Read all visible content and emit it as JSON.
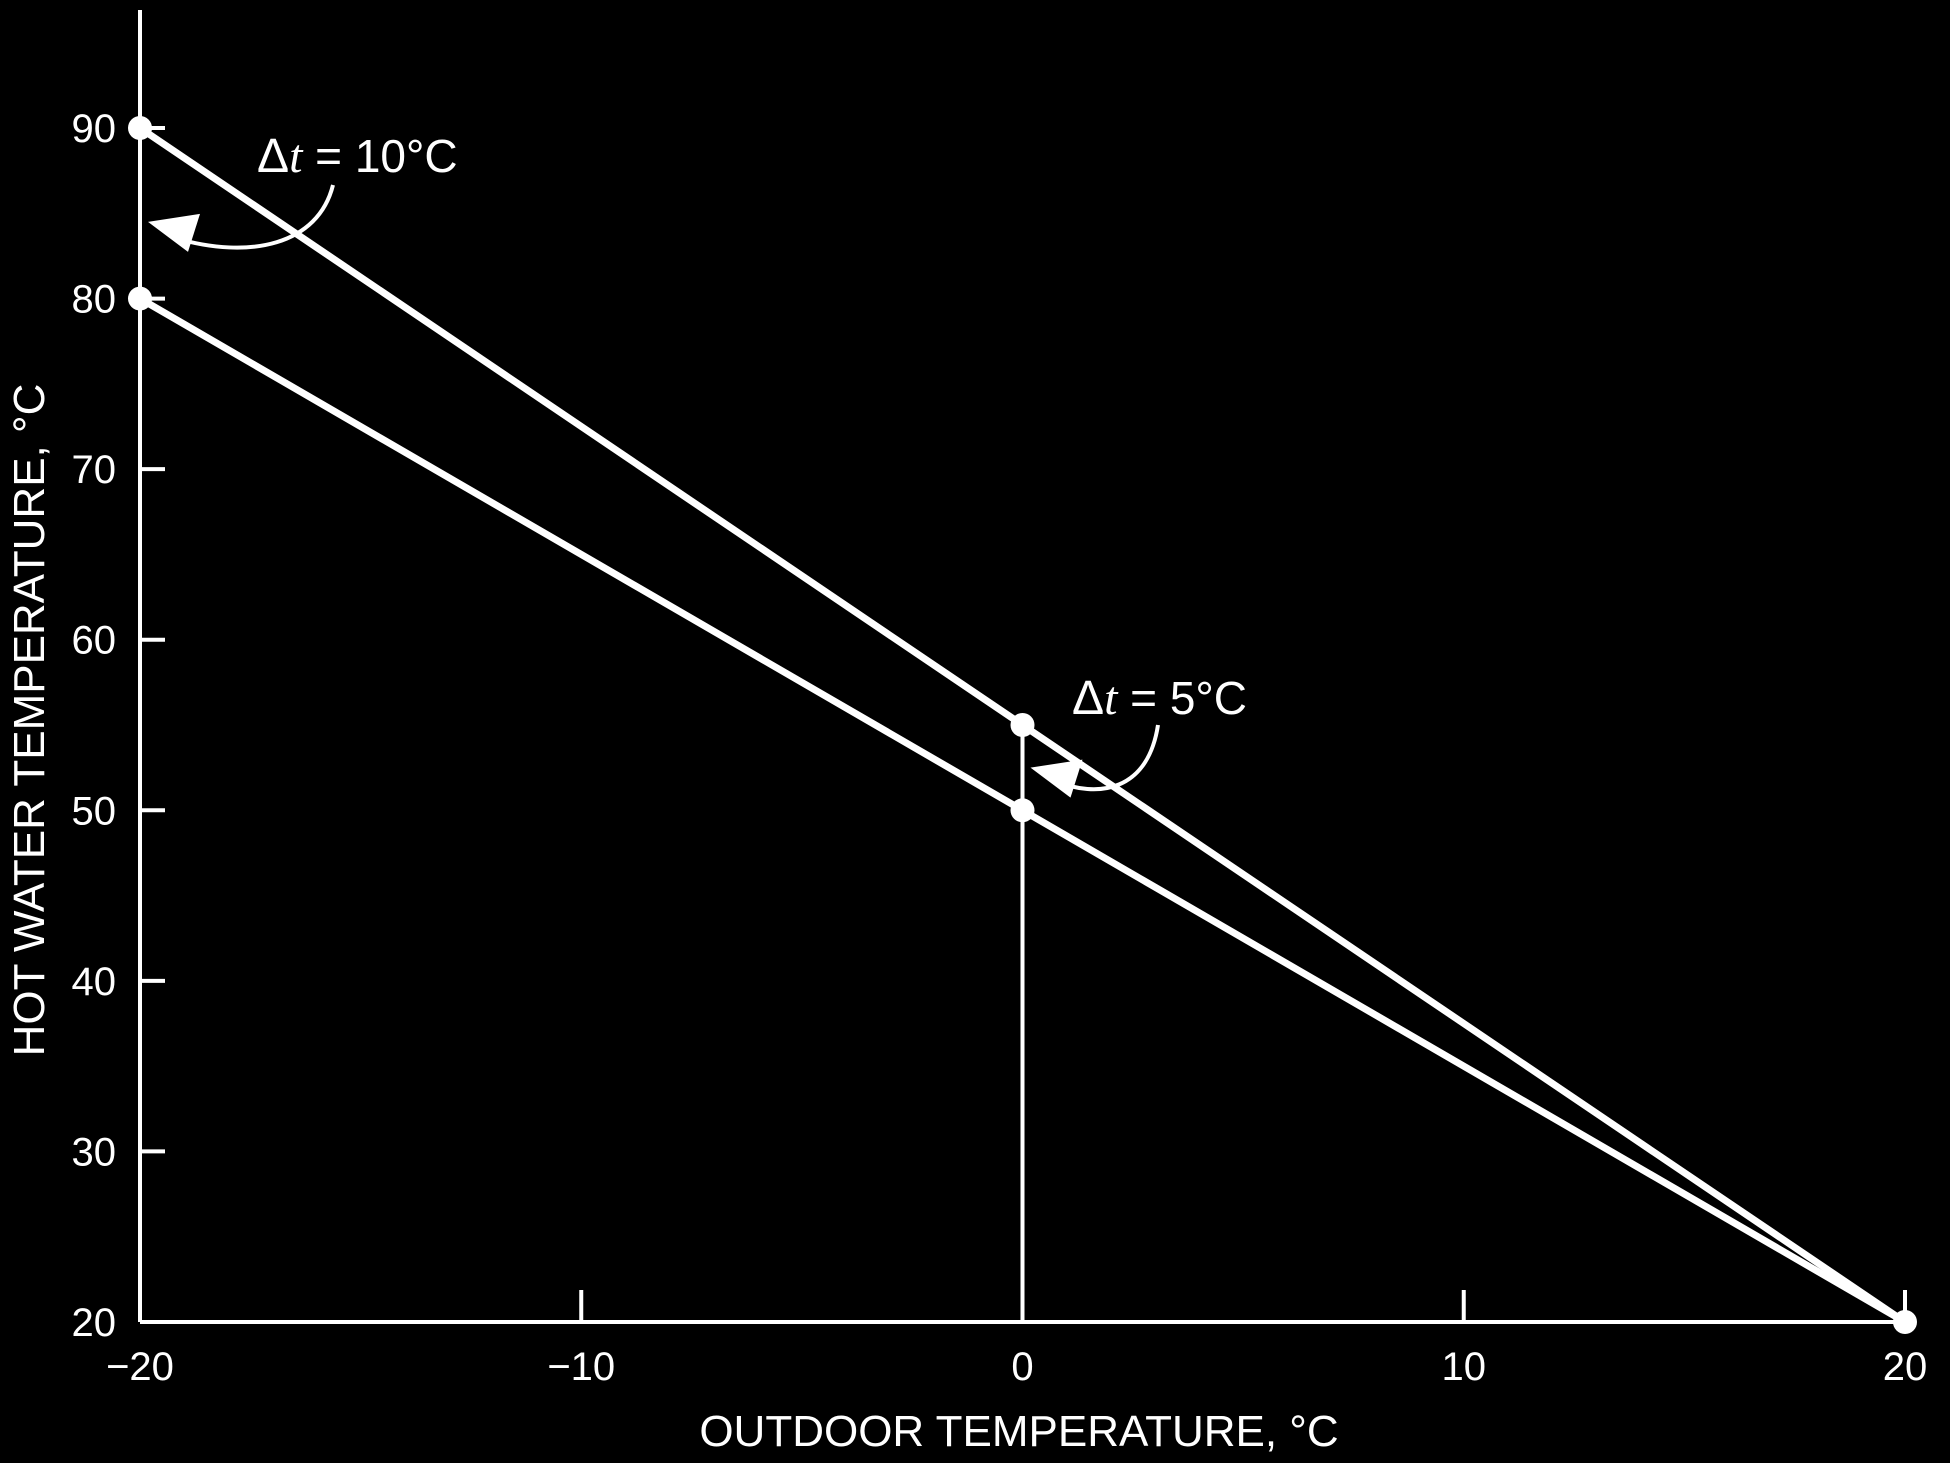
{
  "chart_data": {
    "type": "line",
    "title": "",
    "xlabel": "OUTDOOR TEMPERATURE, °C",
    "ylabel": "HOT WATER TEMPERATURE, °C",
    "xlim": [
      -20,
      20
    ],
    "ylim": [
      20,
      90
    ],
    "x_ticks": [
      -20,
      -10,
      0,
      10,
      20
    ],
    "x_tick_labels": [
      "−20",
      "−10",
      "0",
      "10",
      "20"
    ],
    "y_ticks": [
      20,
      30,
      40,
      50,
      60,
      70,
      80,
      90
    ],
    "y_tick_labels": [
      "20",
      "30",
      "40",
      "50",
      "60",
      "70",
      "80",
      "90"
    ],
    "grid": false,
    "legend": "none",
    "colors": {
      "background": "#000000",
      "foreground": "#ffffff"
    },
    "series": [
      {
        "x": [
          -20,
          0,
          20
        ],
        "y": [
          90,
          55,
          20
        ]
      },
      {
        "x": [
          -20,
          0,
          20
        ],
        "y": [
          80,
          50,
          20
        ]
      }
    ],
    "markers": [
      {
        "x": -20,
        "y": 90
      },
      {
        "x": -20,
        "y": 80
      },
      {
        "x": 0,
        "y": 55
      },
      {
        "x": 0,
        "y": 50
      },
      {
        "x": 20,
        "y": 20
      }
    ],
    "vertical_line_x": 0,
    "annotations": [
      {
        "delta": "Δ",
        "var": "t",
        "rest": " = 10°C",
        "pointer": {
          "x": -20,
          "y": 84.5
        }
      },
      {
        "delta": "Δ",
        "var": "t",
        "rest": " = 5°C",
        "pointer": {
          "x": 0,
          "y": 52.5
        }
      }
    ]
  }
}
